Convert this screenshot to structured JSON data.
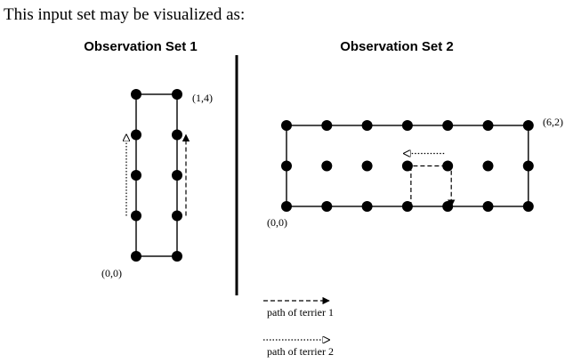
{
  "intro_text": "This input set may be visualized as:",
  "colors": {
    "ink": "#000000",
    "paper": "#ffffff"
  },
  "sets": [
    {
      "title": "Observation Set 1",
      "grid": {
        "max_x": 1,
        "max_y": 4
      },
      "origin_label": "(0,0)",
      "corner_label": "(1,4)",
      "paths": [
        {
          "terrier": 1,
          "points": [
            [
              1,
              1
            ],
            [
              1,
              3
            ]
          ]
        },
        {
          "terrier": 2,
          "points": [
            [
              0,
              1
            ],
            [
              0,
              3
            ]
          ]
        }
      ]
    },
    {
      "title": "Observation Set 2",
      "grid": {
        "max_x": 6,
        "max_y": 2
      },
      "origin_label": "(0,0)",
      "corner_label": "(6,2)",
      "paths": [
        {
          "terrier": 1,
          "points": [
            [
              3,
              0
            ],
            [
              3,
              1
            ],
            [
              4,
              1
            ],
            [
              4,
              0
            ]
          ]
        },
        {
          "terrier": 2,
          "points": [
            [
              4,
              1
            ],
            [
              3,
              1
            ]
          ]
        }
      ]
    }
  ],
  "legend": [
    {
      "terrier": 1,
      "label": "path of terrier 1",
      "style": "dashed"
    },
    {
      "terrier": 2,
      "label": "path of terrier 2",
      "style": "dotted"
    }
  ]
}
